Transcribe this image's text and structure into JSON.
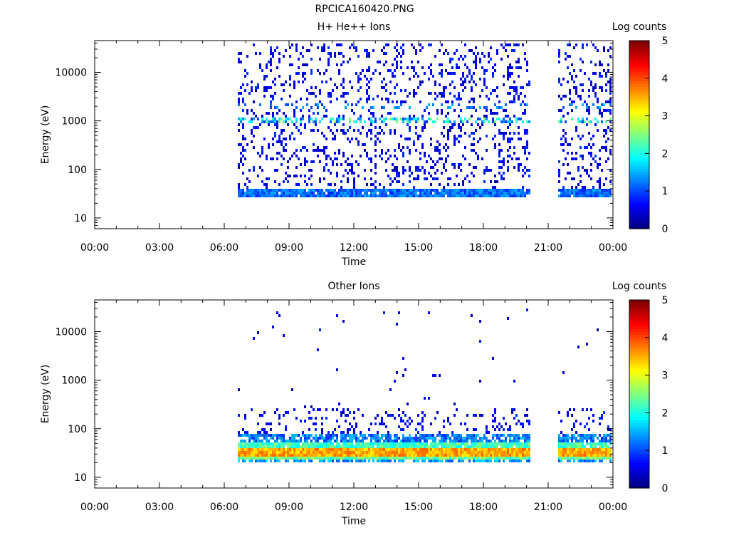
{
  "figure": {
    "title": "RPCICA160420.PNG"
  },
  "chart_data": [
    {
      "type": "heatmap",
      "title": "H+ He++ Ions",
      "xlabel": "Time",
      "ylabel": "Energy (eV)",
      "y_scale": "log",
      "xlim": [
        0,
        24
      ],
      "ylim": [
        6,
        45000
      ],
      "x_ticks": [
        "00:00",
        "03:00",
        "06:00",
        "09:00",
        "12:00",
        "15:00",
        "18:00",
        "21:00",
        "00:00"
      ],
      "y_ticks": [
        {
          "value": 10,
          "label": "10"
        },
        {
          "value": 100,
          "label": "100"
        },
        {
          "value": 1000,
          "label": "1000"
        },
        {
          "value": 10000,
          "label": "10000"
        }
      ],
      "colorbar": {
        "label": "Log counts",
        "range": [
          0,
          5
        ],
        "ticks": [
          "0",
          "1",
          "2",
          "3",
          "4",
          "5"
        ]
      },
      "data_windows_hours": [
        [
          6.55,
          20.15
        ],
        [
          21.45,
          23.9
        ]
      ],
      "bands": [
        {
          "e_min": 27,
          "e_max": 42,
          "level_range": [
            0.8,
            1.5
          ],
          "density": 0.95
        },
        {
          "e_min": 900,
          "e_max": 1150,
          "level_range": [
            0.8,
            2.6
          ],
          "density": 0.5
        },
        {
          "e_min": 1800,
          "e_max": 2200,
          "level_range": [
            0.8,
            1.6
          ],
          "density": 0.25
        },
        {
          "e_min": 40,
          "e_max": 40000,
          "level_range": [
            0.2,
            0.9
          ],
          "density": 0.18
        }
      ]
    },
    {
      "type": "heatmap",
      "title": "Other Ions",
      "xlabel": "Time",
      "ylabel": "Energy (eV)",
      "y_scale": "log",
      "xlim": [
        0,
        24
      ],
      "ylim": [
        6,
        45000
      ],
      "x_ticks": [
        "00:00",
        "03:00",
        "06:00",
        "09:00",
        "12:00",
        "15:00",
        "18:00",
        "21:00",
        "00:00"
      ],
      "y_ticks": [
        {
          "value": 10,
          "label": "10"
        },
        {
          "value": 100,
          "label": "100"
        },
        {
          "value": 1000,
          "label": "1000"
        },
        {
          "value": 10000,
          "label": "10000"
        }
      ],
      "colorbar": {
        "label": "Log counts",
        "range": [
          0,
          5
        ],
        "ticks": [
          "0",
          "1",
          "2",
          "3",
          "4",
          "5"
        ]
      },
      "data_windows_hours": [
        [
          6.55,
          20.15
        ],
        [
          21.45,
          23.9
        ]
      ],
      "bands": [
        {
          "e_min": 28,
          "e_max": 42,
          "level_range": [
            3.2,
            3.9
          ],
          "density": 1.0
        },
        {
          "e_min": 24,
          "e_max": 28,
          "level_range": [
            2.0,
            2.8
          ],
          "density": 1.0
        },
        {
          "e_min": 42,
          "e_max": 55,
          "level_range": [
            1.8,
            2.6
          ],
          "density": 0.95
        },
        {
          "e_min": 55,
          "e_max": 75,
          "level_range": [
            0.8,
            1.6
          ],
          "density": 0.75
        },
        {
          "e_min": 19,
          "e_max": 24,
          "level_range": [
            1.0,
            1.8
          ],
          "density": 0.7
        },
        {
          "e_min": 75,
          "e_max": 250,
          "level_range": [
            0.2,
            0.9
          ],
          "density": 0.15
        },
        {
          "e_min": 250,
          "e_max": 30000,
          "level_range": [
            0.2,
            0.8
          ],
          "density": 0.01
        }
      ]
    }
  ]
}
